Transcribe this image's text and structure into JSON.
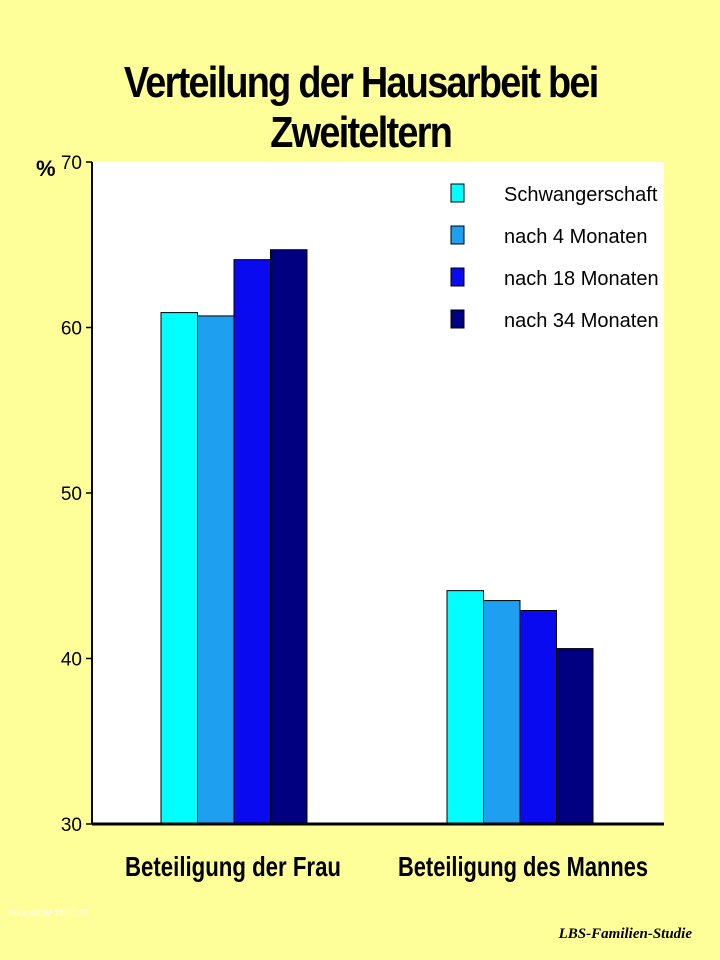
{
  "slide": {
    "title": "Verteilung der Hausarbeit bei Zweiteltern",
    "footer_left": "Petzoldt/W 10/11/20",
    "footer_right": "LBS-Familien-Studie"
  },
  "chart_data": {
    "type": "bar",
    "title": "Verteilung der Hausarbeit bei Zweiteltern",
    "ylabel": "%",
    "xlabel": "",
    "ylim": [
      30,
      70
    ],
    "yticks": [
      30,
      40,
      50,
      60,
      70
    ],
    "categories": [
      "Beteiligung der Frau",
      "Beteiligung des Mannes"
    ],
    "series": [
      {
        "name": "Schwangerschaft",
        "color": "#00FFFF",
        "values": [
          60.9,
          44.1
        ]
      },
      {
        "name": "nach 4 Monaten",
        "color": "#1E9FEF",
        "values": [
          60.7,
          43.5
        ]
      },
      {
        "name": "nach 18 Monaten",
        "color": "#0A0AF0",
        "values": [
          64.1,
          42.9
        ]
      },
      {
        "name": "nach 34 Monaten",
        "color": "#000080",
        "values": [
          64.7,
          40.6
        ]
      }
    ],
    "grid": false,
    "legend_position": "top-right",
    "plot_background": "#FFFFFF",
    "page_background": "#FFFF99"
  }
}
